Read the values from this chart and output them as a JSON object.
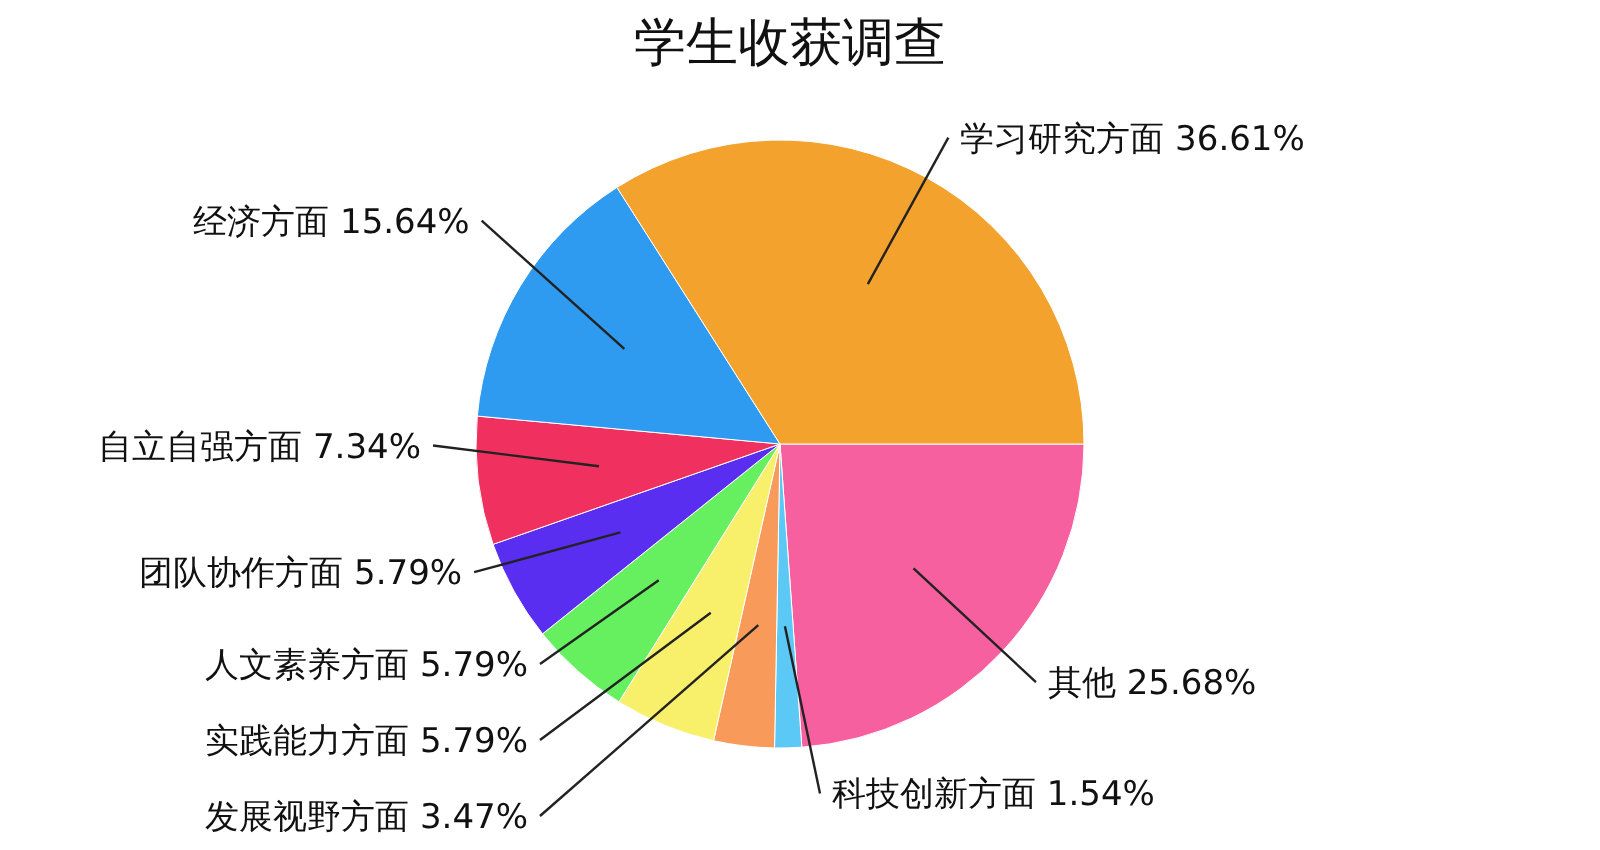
{
  "chart_data": {
    "type": "pie",
    "title": "学生收获调查",
    "categories": [
      "其他",
      "科技创新方面",
      "发展视野方面",
      "实践能力方面",
      "人文素养方面",
      "团队协作方面",
      "自立自强方面",
      "经济方面",
      "学习研究方面"
    ],
    "values": [
      25.68,
      1.54,
      3.47,
      5.79,
      5.79,
      5.79,
      7.34,
      15.64,
      36.61
    ],
    "value_labels": [
      "25.68%",
      "1.54%",
      "3.47%",
      "5.79%",
      "5.79%",
      "5.79%",
      "7.34%",
      "15.64%",
      "36.61%"
    ],
    "colors": [
      "#f7609f",
      "#5bc8f5",
      "#f79a5a",
      "#f8ef6a",
      "#66f060",
      "#5a2ef0",
      "#f0305e",
      "#2f9bf0",
      "#f2a22d"
    ]
  }
}
